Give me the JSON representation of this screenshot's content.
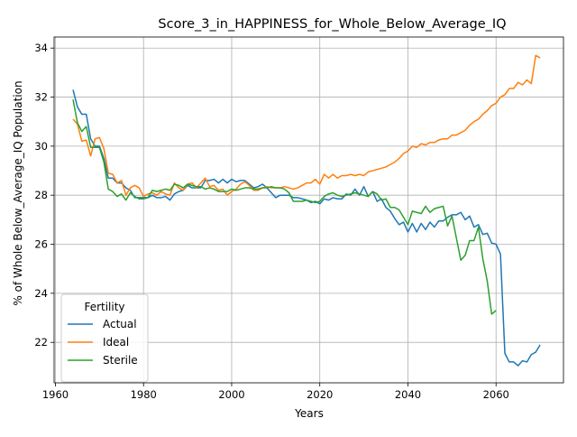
{
  "chart_data": {
    "type": "line",
    "title": "Score_3_in_HAPPINESS_for_Whole_Below_Average_IQ",
    "xlabel": "Years",
    "ylabel": "% of Whole Below_Average_IQ Population",
    "xlim": [
      1959.7,
      2075.3
    ],
    "ylim": [
      20.35,
      34.45
    ],
    "xticks": [
      1960,
      1980,
      2000,
      2020,
      2040,
      2060
    ],
    "yticks": [
      22,
      24,
      26,
      28,
      30,
      32,
      34
    ],
    "grid": true,
    "legend": {
      "title": "Fertility",
      "position": "lower-left"
    },
    "series": [
      {
        "name": "Actual",
        "color": "#1f77b4",
        "points": [
          [
            1964,
            32.3
          ],
          [
            1965,
            31.6
          ],
          [
            1966,
            31.3
          ],
          [
            1967,
            31.3
          ],
          [
            1968,
            30.3
          ],
          [
            1969,
            30.0
          ],
          [
            1970,
            30.0
          ],
          [
            1971,
            29.5
          ],
          [
            1972,
            28.7
          ],
          [
            1973,
            28.7
          ],
          [
            1974,
            28.5
          ],
          [
            1975,
            28.5
          ],
          [
            1976,
            28.3
          ],
          [
            1977,
            28.2
          ],
          [
            1978,
            27.9
          ],
          [
            1979,
            27.9
          ],
          [
            1980,
            27.9
          ],
          [
            1981,
            27.9
          ],
          [
            1982,
            28.0
          ],
          [
            1983,
            27.9
          ],
          [
            1984,
            27.9
          ],
          [
            1985,
            27.95
          ],
          [
            1986,
            27.8
          ],
          [
            1987,
            28.05
          ],
          [
            1988,
            28.15
          ],
          [
            1989,
            28.2
          ],
          [
            1990,
            28.4
          ],
          [
            1991,
            28.3
          ],
          [
            1992,
            28.3
          ],
          [
            1993,
            28.3
          ],
          [
            1994,
            28.6
          ],
          [
            1995,
            28.6
          ],
          [
            1996,
            28.65
          ],
          [
            1997,
            28.5
          ],
          [
            1998,
            28.65
          ],
          [
            1999,
            28.5
          ],
          [
            2000,
            28.65
          ],
          [
            2001,
            28.55
          ],
          [
            2002,
            28.6
          ],
          [
            2003,
            28.6
          ],
          [
            2004,
            28.45
          ],
          [
            2005,
            28.3
          ],
          [
            2006,
            28.35
          ],
          [
            2007,
            28.45
          ],
          [
            2008,
            28.3
          ],
          [
            2009,
            28.1
          ],
          [
            2010,
            27.9
          ],
          [
            2011,
            28.0
          ],
          [
            2012,
            28.0
          ],
          [
            2013,
            28.0
          ],
          [
            2014,
            27.9
          ],
          [
            2015,
            27.9
          ],
          [
            2016,
            27.85
          ],
          [
            2017,
            27.8
          ],
          [
            2018,
            27.7
          ],
          [
            2019,
            27.75
          ],
          [
            2020,
            27.65
          ],
          [
            2021,
            27.85
          ],
          [
            2022,
            27.8
          ],
          [
            2023,
            27.9
          ],
          [
            2024,
            27.85
          ],
          [
            2025,
            27.85
          ],
          [
            2026,
            28.05
          ],
          [
            2027,
            28.0
          ],
          [
            2028,
            28.25
          ],
          [
            2029,
            28.0
          ],
          [
            2030,
            28.35
          ],
          [
            2031,
            27.95
          ],
          [
            2032,
            28.15
          ],
          [
            2033,
            27.75
          ],
          [
            2034,
            27.85
          ],
          [
            2035,
            27.5
          ],
          [
            2036,
            27.35
          ],
          [
            2037,
            27.05
          ],
          [
            2038,
            26.8
          ],
          [
            2039,
            26.9
          ],
          [
            2040,
            26.5
          ],
          [
            2041,
            26.85
          ],
          [
            2042,
            26.5
          ],
          [
            2043,
            26.85
          ],
          [
            2044,
            26.6
          ],
          [
            2045,
            26.9
          ],
          [
            2046,
            26.7
          ],
          [
            2047,
            26.95
          ],
          [
            2048,
            26.95
          ],
          [
            2049,
            27.1
          ],
          [
            2050,
            27.2
          ],
          [
            2051,
            27.2
          ],
          [
            2052,
            27.3
          ],
          [
            2053,
            27.0
          ],
          [
            2054,
            27.15
          ],
          [
            2055,
            26.7
          ],
          [
            2056,
            26.8
          ],
          [
            2057,
            26.4
          ],
          [
            2058,
            26.45
          ],
          [
            2059,
            26.05
          ],
          [
            2060,
            26.0
          ],
          [
            2061,
            25.6
          ],
          [
            2062,
            21.55
          ],
          [
            2063,
            21.2
          ],
          [
            2064,
            21.2
          ],
          [
            2065,
            21.05
          ],
          [
            2066,
            21.25
          ],
          [
            2067,
            21.2
          ],
          [
            2068,
            21.5
          ],
          [
            2069,
            21.6
          ],
          [
            2070,
            21.9
          ]
        ]
      },
      {
        "name": "Ideal",
        "color": "#ff7f0e",
        "points": [
          [
            1964,
            31.1
          ],
          [
            1965,
            30.9
          ],
          [
            1966,
            30.2
          ],
          [
            1967,
            30.25
          ],
          [
            1968,
            29.6
          ],
          [
            1969,
            30.3
          ],
          [
            1970,
            30.35
          ],
          [
            1971,
            29.9
          ],
          [
            1972,
            28.9
          ],
          [
            1973,
            28.85
          ],
          [
            1974,
            28.5
          ],
          [
            1975,
            28.6
          ],
          [
            1976,
            28.0
          ],
          [
            1977,
            28.3
          ],
          [
            1978,
            28.4
          ],
          [
            1979,
            28.3
          ],
          [
            1980,
            27.95
          ],
          [
            1981,
            28.05
          ],
          [
            1982,
            28.1
          ],
          [
            1983,
            28.0
          ],
          [
            1984,
            28.15
          ],
          [
            1985,
            28.05
          ],
          [
            1986,
            28.0
          ],
          [
            1987,
            28.5
          ],
          [
            1988,
            28.3
          ],
          [
            1989,
            28.2
          ],
          [
            1990,
            28.45
          ],
          [
            1991,
            28.5
          ],
          [
            1992,
            28.3
          ],
          [
            1993,
            28.5
          ],
          [
            1994,
            28.7
          ],
          [
            1995,
            28.35
          ],
          [
            1996,
            28.4
          ],
          [
            1997,
            28.2
          ],
          [
            1998,
            28.25
          ],
          [
            1999,
            28.0
          ],
          [
            2000,
            28.15
          ],
          [
            2001,
            28.25
          ],
          [
            2002,
            28.45
          ],
          [
            2003,
            28.55
          ],
          [
            2004,
            28.4
          ],
          [
            2005,
            28.2
          ],
          [
            2006,
            28.2
          ],
          [
            2007,
            28.3
          ],
          [
            2008,
            28.35
          ],
          [
            2009,
            28.3
          ],
          [
            2010,
            28.3
          ],
          [
            2011,
            28.3
          ],
          [
            2012,
            28.35
          ],
          [
            2013,
            28.3
          ],
          [
            2014,
            28.25
          ],
          [
            2015,
            28.3
          ],
          [
            2016,
            28.4
          ],
          [
            2017,
            28.5
          ],
          [
            2018,
            28.5
          ],
          [
            2019,
            28.65
          ],
          [
            2020,
            28.45
          ],
          [
            2021,
            28.85
          ],
          [
            2022,
            28.7
          ],
          [
            2023,
            28.85
          ],
          [
            2024,
            28.7
          ],
          [
            2025,
            28.8
          ],
          [
            2026,
            28.8
          ],
          [
            2027,
            28.85
          ],
          [
            2028,
            28.8
          ],
          [
            2029,
            28.85
          ],
          [
            2030,
            28.8
          ],
          [
            2031,
            28.95
          ],
          [
            2032,
            29.0
          ],
          [
            2033,
            29.05
          ],
          [
            2034,
            29.1
          ],
          [
            2035,
            29.15
          ],
          [
            2036,
            29.25
          ],
          [
            2037,
            29.35
          ],
          [
            2038,
            29.5
          ],
          [
            2039,
            29.7
          ],
          [
            2040,
            29.8
          ],
          [
            2041,
            30.0
          ],
          [
            2042,
            29.95
          ],
          [
            2043,
            30.1
          ],
          [
            2044,
            30.05
          ],
          [
            2045,
            30.15
          ],
          [
            2046,
            30.15
          ],
          [
            2047,
            30.25
          ],
          [
            2048,
            30.3
          ],
          [
            2049,
            30.3
          ],
          [
            2050,
            30.45
          ],
          [
            2051,
            30.45
          ],
          [
            2052,
            30.55
          ],
          [
            2053,
            30.65
          ],
          [
            2054,
            30.85
          ],
          [
            2055,
            31.0
          ],
          [
            2056,
            31.1
          ],
          [
            2057,
            31.3
          ],
          [
            2058,
            31.45
          ],
          [
            2059,
            31.65
          ],
          [
            2060,
            31.75
          ],
          [
            2061,
            32.0
          ],
          [
            2062,
            32.1
          ],
          [
            2063,
            32.35
          ],
          [
            2064,
            32.35
          ],
          [
            2065,
            32.6
          ],
          [
            2066,
            32.5
          ],
          [
            2067,
            32.7
          ],
          [
            2068,
            32.55
          ],
          [
            2069,
            33.7
          ],
          [
            2070,
            33.6
          ]
        ]
      },
      {
        "name": "Sterile",
        "color": "#2ca02c",
        "points": [
          [
            1964,
            31.9
          ],
          [
            1965,
            30.95
          ],
          [
            1966,
            30.6
          ],
          [
            1967,
            30.8
          ],
          [
            1968,
            29.95
          ],
          [
            1969,
            29.95
          ],
          [
            1970,
            29.95
          ],
          [
            1971,
            29.35
          ],
          [
            1972,
            28.25
          ],
          [
            1973,
            28.15
          ],
          [
            1974,
            27.95
          ],
          [
            1975,
            28.05
          ],
          [
            1976,
            27.8
          ],
          [
            1977,
            28.1
          ],
          [
            1978,
            27.95
          ],
          [
            1979,
            27.85
          ],
          [
            1980,
            27.85
          ],
          [
            1981,
            27.9
          ],
          [
            1982,
            28.2
          ],
          [
            1983,
            28.15
          ],
          [
            1984,
            28.2
          ],
          [
            1985,
            28.25
          ],
          [
            1986,
            28.2
          ],
          [
            1987,
            28.45
          ],
          [
            1988,
            28.4
          ],
          [
            1989,
            28.3
          ],
          [
            1990,
            28.45
          ],
          [
            1991,
            28.4
          ],
          [
            1992,
            28.35
          ],
          [
            1993,
            28.35
          ],
          [
            1994,
            28.25
          ],
          [
            1995,
            28.3
          ],
          [
            1996,
            28.25
          ],
          [
            1997,
            28.15
          ],
          [
            1998,
            28.15
          ],
          [
            1999,
            28.15
          ],
          [
            2000,
            28.25
          ],
          [
            2001,
            28.2
          ],
          [
            2002,
            28.25
          ],
          [
            2003,
            28.3
          ],
          [
            2004,
            28.3
          ],
          [
            2005,
            28.25
          ],
          [
            2006,
            28.25
          ],
          [
            2007,
            28.3
          ],
          [
            2008,
            28.3
          ],
          [
            2009,
            28.35
          ],
          [
            2010,
            28.3
          ],
          [
            2011,
            28.3
          ],
          [
            2012,
            28.25
          ],
          [
            2013,
            28.1
          ],
          [
            2014,
            27.75
          ],
          [
            2015,
            27.75
          ],
          [
            2016,
            27.75
          ],
          [
            2017,
            27.8
          ],
          [
            2018,
            27.75
          ],
          [
            2019,
            27.7
          ],
          [
            2020,
            27.75
          ],
          [
            2021,
            27.95
          ],
          [
            2022,
            28.05
          ],
          [
            2023,
            28.1
          ],
          [
            2024,
            28.0
          ],
          [
            2025,
            27.95
          ],
          [
            2026,
            28.0
          ],
          [
            2027,
            28.05
          ],
          [
            2028,
            28.1
          ],
          [
            2029,
            28.05
          ],
          [
            2030,
            28.0
          ],
          [
            2031,
            27.95
          ],
          [
            2032,
            28.15
          ],
          [
            2033,
            28.05
          ],
          [
            2034,
            27.8
          ],
          [
            2035,
            27.85
          ],
          [
            2036,
            27.5
          ],
          [
            2037,
            27.5
          ],
          [
            2038,
            27.4
          ],
          [
            2039,
            27.1
          ],
          [
            2040,
            26.8
          ],
          [
            2041,
            27.35
          ],
          [
            2042,
            27.3
          ],
          [
            2043,
            27.25
          ],
          [
            2044,
            27.55
          ],
          [
            2045,
            27.3
          ],
          [
            2046,
            27.45
          ],
          [
            2047,
            27.5
          ],
          [
            2048,
            27.55
          ],
          [
            2049,
            26.75
          ],
          [
            2050,
            27.15
          ],
          [
            2051,
            26.25
          ],
          [
            2052,
            25.35
          ],
          [
            2053,
            25.55
          ],
          [
            2054,
            26.15
          ],
          [
            2055,
            26.15
          ],
          [
            2056,
            26.7
          ],
          [
            2057,
            25.4
          ],
          [
            2058,
            24.5
          ],
          [
            2059,
            23.15
          ],
          [
            2060,
            23.3
          ]
        ]
      }
    ]
  }
}
